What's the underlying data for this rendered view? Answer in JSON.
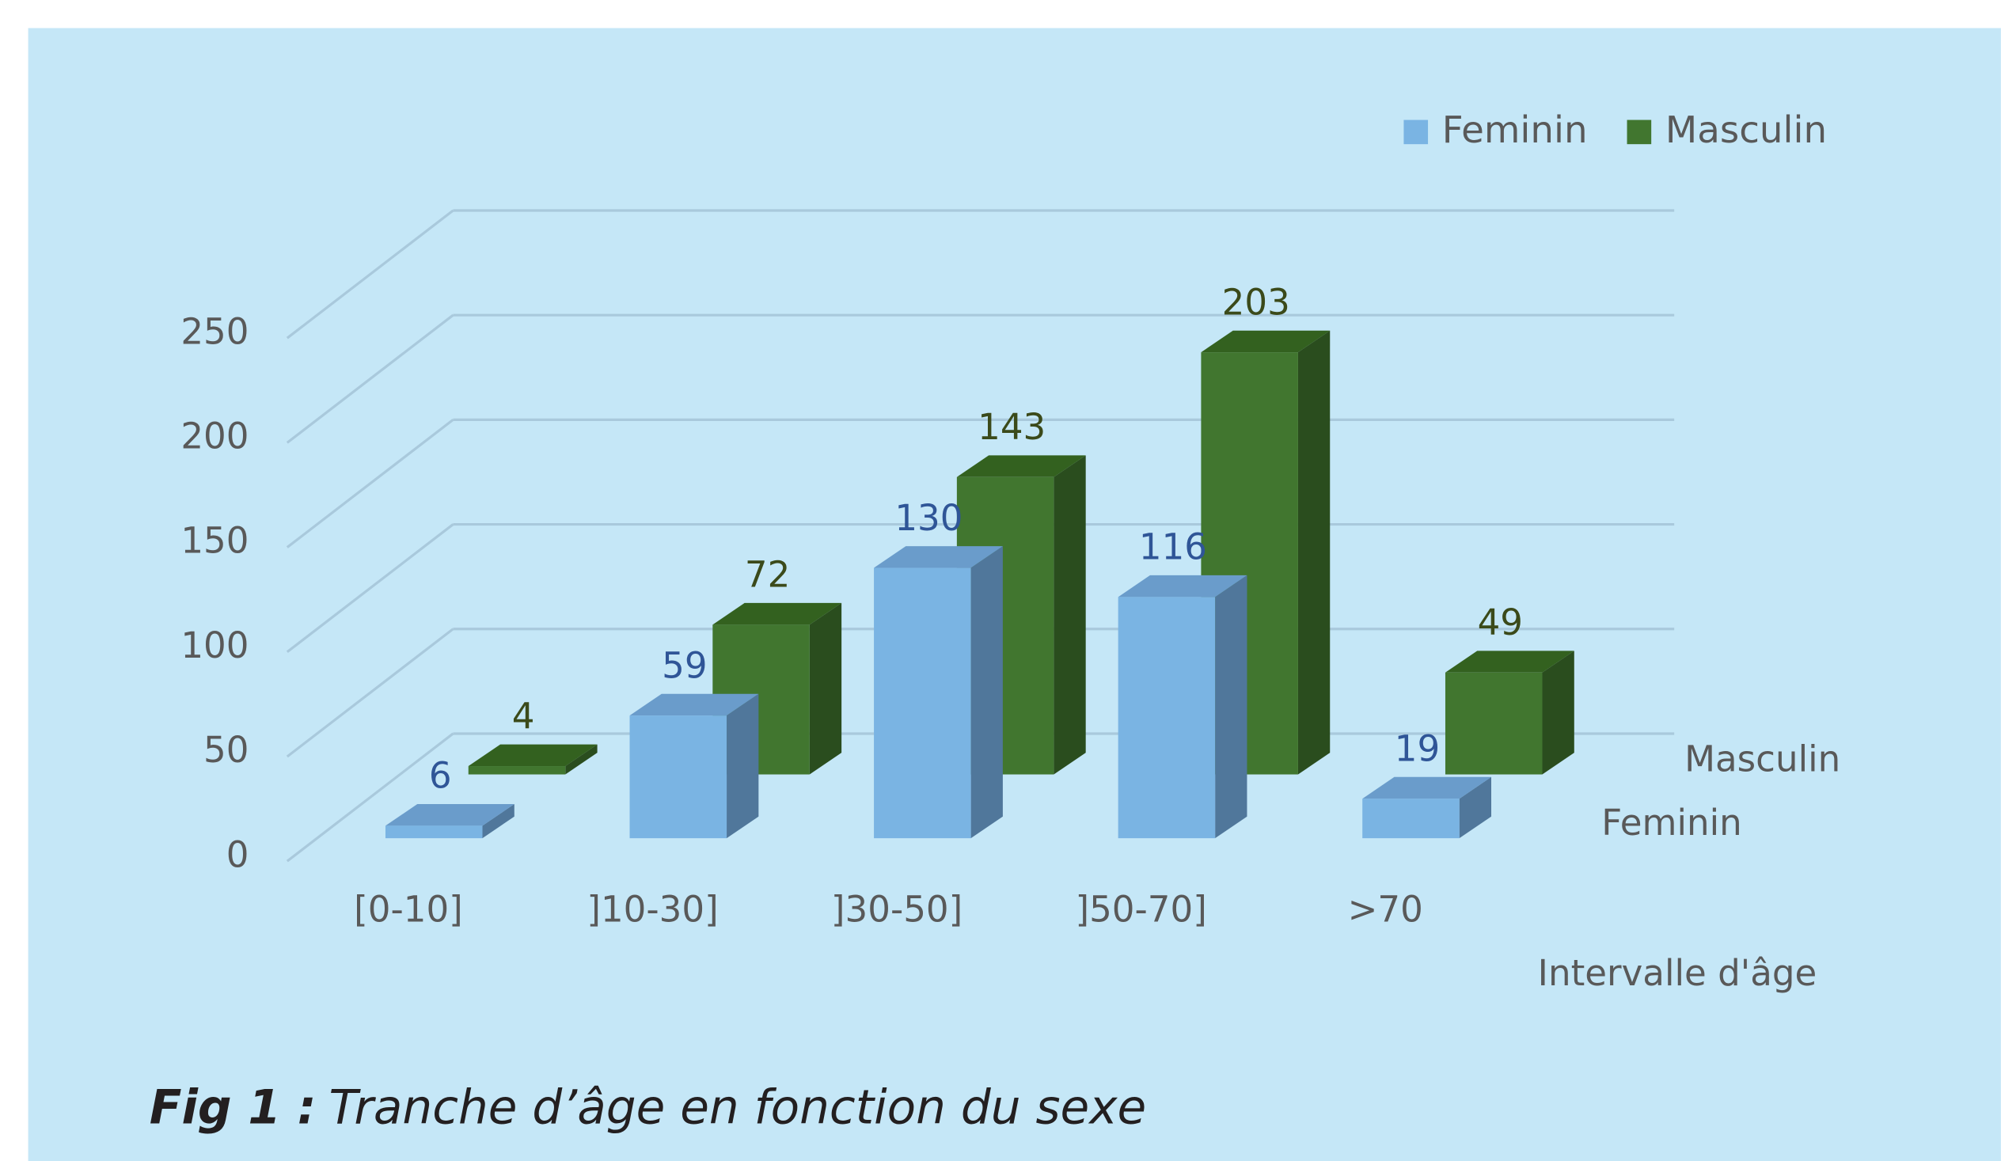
{
  "chart_data": {
    "type": "bar3d",
    "categories": [
      "[0-10]",
      "]10-30]",
      "]30-50]",
      "]50-70]",
      ">70"
    ],
    "series": [
      {
        "name": "Feminin",
        "color": "#7ab4e3",
        "values": [
          6,
          59,
          130,
          116,
          19
        ]
      },
      {
        "name": "Masculin",
        "color": "#41762f",
        "values": [
          4,
          72,
          143,
          203,
          49
        ]
      }
    ],
    "ylim": [
      0,
      250
    ],
    "yticks": [
      0,
      50,
      100,
      150,
      200,
      250
    ],
    "grid": true,
    "x_label": "Intervalle d'âge",
    "legend": "top-right"
  },
  "caption": {
    "label": "Fig 1 :",
    "text": "Tranche d’âge en fonction du sexe"
  }
}
